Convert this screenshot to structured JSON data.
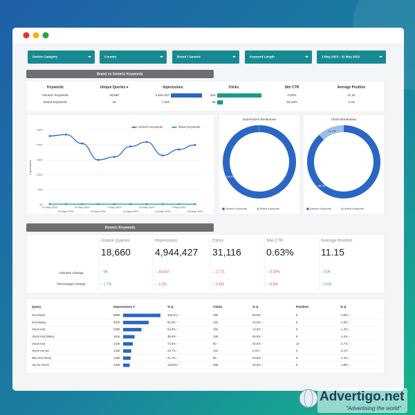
{
  "filters": [
    "Device Category",
    "Country",
    "Brand / Generic",
    "Keyword Length",
    "1 May 2023 - 31 May 2023"
  ],
  "brand_section": {
    "title": "Brand vs Generic Keywords",
    "columns": [
      "Keywords",
      "Unique Queries ▾",
      "Impressions",
      "Clicks",
      "Site CTR",
      "Average Position"
    ],
    "rows": [
      {
        "keyword": "Generic Keywords",
        "unique_queries": "18,660",
        "impressions": {
          "value": 4944427,
          "label": "4,944,427"
        },
        "clicks": {
          "value": 31000,
          "label": "31K"
        },
        "site_ctr": "0.63%",
        "average_position": "11.15"
      },
      {
        "keyword": "Brand Keywords",
        "unique_queries": "15",
        "impressions": {
          "value": 7245,
          "label": "7,245"
        },
        "clicks": {
          "value": 4000,
          "label": "4K"
        },
        "site_ctr": "53.33%",
        "average_position": "1.16"
      }
    ]
  },
  "chart_data": [
    {
      "type": "line",
      "y_label": "Impressions",
      "categories": [
        "21 May 2023",
        "30 May 2023",
        "10 May 2023",
        "16 May 2023",
        "3 May 2023",
        "14 May 2023",
        "15 May 2023",
        "24 May 2023",
        "5 May 2023",
        "28 May 2023"
      ],
      "series": [
        {
          "name": "Generic Keywords",
          "color": "#2a66c4",
          "values": [
            230000,
            235000,
            205000,
            150000,
            160000,
            195000,
            210000,
            165000,
            185000,
            200000
          ]
        },
        {
          "name": "Brand Keywords",
          "color": "#1a9a8e",
          "values": [
            2000,
            2000,
            2000,
            2000,
            2000,
            2000,
            2000,
            2000,
            2000,
            2000
          ]
        }
      ],
      "ylim": [
        0,
        250000
      ],
      "yticks": [
        {
          "value": 0,
          "label": "0K"
        },
        {
          "value": 50000,
          "label": "50K"
        },
        {
          "value": 100000,
          "label": "100K"
        },
        {
          "value": 150000,
          "label": "150K"
        },
        {
          "value": 200000,
          "label": "200K"
        },
        {
          "value": 250000,
          "label": "250K"
        }
      ],
      "grid": true
    },
    {
      "type": "pie",
      "title": "Impressions Breakdown",
      "categories": [
        "Generic Keywords",
        "Brand Keywords"
      ],
      "colors": [
        "#2a66c4",
        "#9dbde8"
      ],
      "values": [
        99.9,
        0.1
      ],
      "value_labels": [
        "99.9%",
        null
      ]
    },
    {
      "type": "pie",
      "title": "Clicks Breakdown",
      "categories": [
        "Generic Keywords",
        "Brand Keywords"
      ],
      "colors": [
        "#2a66c4",
        "#9dbde8"
      ],
      "values": [
        88.3,
        11.7
      ],
      "value_labels": [
        "88.3%",
        "11.7%"
      ]
    }
  ],
  "generic_section": {
    "title": "Generic Keywords",
    "row_labels": [
      "Absolute Change",
      "Percentage Change"
    ],
    "scorecards": [
      {
        "label": "Unique Queries",
        "value": "18,660",
        "absolute": "↑ 58",
        "percentage": "↑ 1.7%"
      },
      {
        "label": "Impressions",
        "value": "4,944,427",
        "absolute": "↓ -54,547",
        "percentage": "↓ -1.1%"
      },
      {
        "label": "Clicks",
        "value": "31,116",
        "absolute": "↓ -1,771",
        "percentage": "↓ -5.6%"
      },
      {
        "label": "Site CTR",
        "value": "0.63%",
        "absolute": "↓ -0.02%",
        "percentage": "↓ -0.6%"
      },
      {
        "label": "Average Position",
        "value": "11.15",
        "absolute": "↑ 0.06",
        "percentage": "↑ 0.5%"
      }
    ],
    "query_table": {
      "columns": [
        "Query",
        "Impressions ▾",
        "% Δ",
        "Clicks",
        "% Δ",
        "Position",
        "% Δ"
      ],
      "rows": [
        {
          "query": "mot check",
          "impressions": {
            "value": 589000,
            "label": "589K"
          },
          "impressions_change": "102.1% ↑",
          "clicks": "290",
          "clicks_change": "50.6% ↑",
          "position": "9",
          "position_change": "-4.6% ↓"
        },
        {
          "query": "mot history",
          "impressions": {
            "value": 403000,
            "label": "403K"
          },
          "impressions_change": "55.6% ↑",
          "clicks": "183",
          "clicks_change": "14.0% ↑",
          "position": "9",
          "position_change": "-1.8% ↓"
        },
        {
          "query": "check mot",
          "impressions": {
            "value": 289000,
            "label": "289K"
          },
          "impressions_change": "54.0% ↑",
          "clicks": "156",
          "clicks_change": "14.0% ↑",
          "position": "9",
          "position_change": "-1.3% ↓"
        },
        {
          "query": "check mot history",
          "impressions": {
            "value": 181000,
            "label": "181K"
          },
          "impressions_change": "35.5% ↑",
          "clicks": "136",
          "clicks_change": "55.9% ↑",
          "position": "9",
          "position_change": "-1.4% ↓"
        },
        {
          "query": "check mot",
          "impressions": {
            "value": 154000,
            "label": "154K"
          },
          "impressions_change": "73.6% ↑",
          "clicks": "90",
          "clicks_change": "50.8% ↑",
          "position": "10",
          "position_change": "-5.7% ↓"
        },
        {
          "query": "check car tax",
          "impressions": {
            "value": 129000,
            "label": "129K"
          },
          "impressions_change": "29.7% ↑",
          "clicks": "150",
          "clicks_change": "0.4% ↑",
          "position": "9",
          "position_change": "-5.1% ↓"
        },
        {
          "query": "dvla mot check",
          "impressions": {
            "value": 118000,
            "label": "118K"
          },
          "impressions_change": "21.7% ↑",
          "clicks": "99",
          "clicks_change": "28.5% ↑",
          "position": "9",
          "position_change": "-1.4% ↓"
        },
        {
          "query": "car tax check",
          "impressions": {
            "value": 103000,
            "label": "103K"
          },
          "impressions_change": "133.5% ↑",
          "clicks": "288",
          "clicks_change": "23.5% ↑",
          "position": "9",
          "position_change": "-4.8% ↓"
        }
      ]
    }
  },
  "watermark": {
    "brand": "Advertigo.net",
    "tagline": "\"Advertising the world\""
  }
}
